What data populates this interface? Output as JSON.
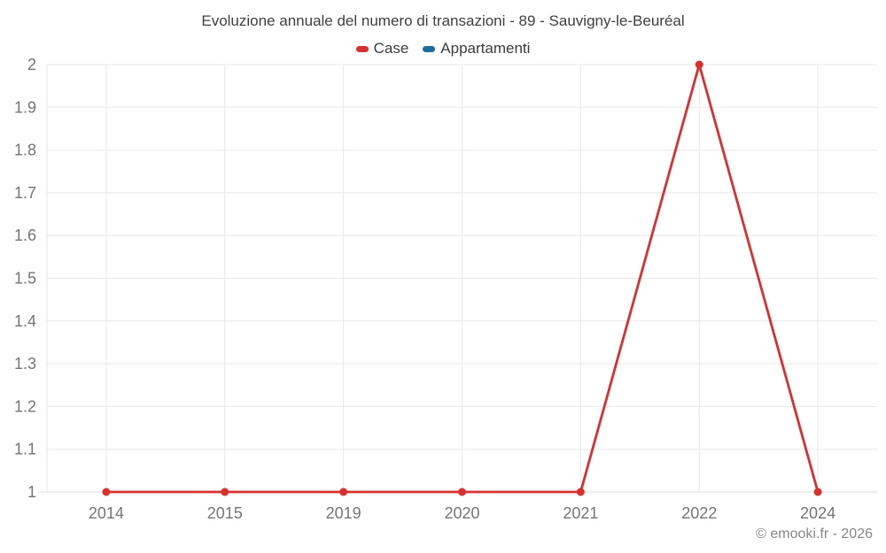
{
  "title": "Evoluzione annuale del numero di transazioni - 89 - Sauvigny-le-Beuréal",
  "legend": {
    "items": [
      {
        "label": "Case",
        "color": "#d7302f"
      },
      {
        "label": "Appartamenti",
        "color": "#1a6d9c"
      }
    ]
  },
  "watermark": "© emooki.fr - 2026",
  "colors": {
    "grid": "#e8e8e8",
    "axis_line": "#dcdcdc",
    "axis_text": "#757575",
    "title_text": "#3f3f3f",
    "watermark_text": "#878787",
    "background": "#ffffff"
  },
  "chart_data": {
    "type": "line",
    "title": "Evoluzione annuale del numero di transazioni - 89 - Sauvigny-le-Beuréal",
    "categories": [
      "2014",
      "2015",
      "2019",
      "2020",
      "2021",
      "2022",
      "2024"
    ],
    "series": [
      {
        "name": "Case",
        "color": "#d7302f",
        "values": [
          1,
          1,
          1,
          1,
          1,
          2,
          1
        ]
      },
      {
        "name": "Appartamenti",
        "color": "#1a6d9c",
        "values": []
      }
    ],
    "xlabel": "",
    "ylabel": "",
    "ylim": [
      1,
      2
    ],
    "y_ticks": [
      1,
      1.1,
      1.2,
      1.3,
      1.4,
      1.5,
      1.6,
      1.7,
      1.8,
      1.9,
      2
    ],
    "grid": true,
    "legend_position": "top",
    "marker": "circle"
  }
}
